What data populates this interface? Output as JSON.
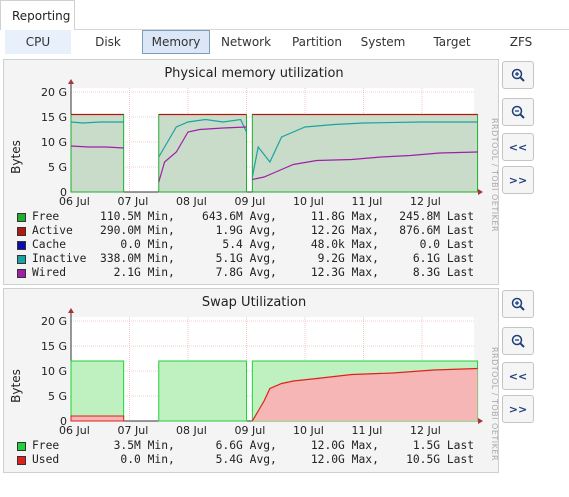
{
  "top_tab": "Reporting",
  "subtabs": [
    "CPU",
    "Disk",
    "Memory",
    "Network",
    "Partition",
    "System",
    "Target",
    "ZFS"
  ],
  "active_subtab": "Memory",
  "side_buttons": {
    "zoom_in": "zoom-in",
    "zoom_out": "zoom-out",
    "prev": "<<",
    "next": ">>"
  },
  "watermark": "RRDTOOL / TOBI OETIKER",
  "memory_chart": {
    "title": "Physical memory utilization",
    "ylabel": "Bytes",
    "y_ticks": [
      "0",
      "5 G",
      "10 G",
      "15 G",
      "20 G"
    ],
    "x_ticks": [
      "06 Jul",
      "07 Jul",
      "08 Jul",
      "09 Jul",
      "10 Jul",
      "11 Jul",
      "12 Jul"
    ],
    "legend": [
      {
        "name": "Free",
        "color": "#1fae2e",
        "min": "110.5M",
        "avg": "643.6M",
        "max": "11.8G",
        "last": "245.8M"
      },
      {
        "name": "Active",
        "color": "#b01a10",
        "min": "290.0M",
        "avg": "1.9G",
        "max": "12.2G",
        "last": "876.6M"
      },
      {
        "name": "Cache",
        "color": "#0b0bb0",
        "min": "0.0",
        "avg": "5.4",
        "max": "48.0k",
        "last": "0.0"
      },
      {
        "name": "Inactive",
        "color": "#1aa3a3",
        "min": "338.0M",
        "avg": "5.1G",
        "max": "9.2G",
        "last": "6.1G"
      },
      {
        "name": "Wired",
        "color": "#a01fa8",
        "min": "2.1G",
        "avg": "7.8G",
        "max": "12.3G",
        "last": "8.3G"
      }
    ]
  },
  "swap_chart": {
    "title": "Swap Utilization",
    "ylabel": "Bytes",
    "y_ticks": [
      "0",
      "5 G",
      "10 G",
      "15 G",
      "20 G"
    ],
    "x_ticks": [
      "06 Jul",
      "07 Jul",
      "08 Jul",
      "09 Jul",
      "10 Jul",
      "11 Jul",
      "12 Jul"
    ],
    "legend": [
      {
        "name": "Free",
        "color": "#1fd13a",
        "min": "3.5M",
        "avg": "6.6G",
        "max": "12.0G",
        "last": "1.5G"
      },
      {
        "name": "Used",
        "color": "#e0201c",
        "min": "0.0",
        "avg": "5.4G",
        "max": "12.0G",
        "last": "10.5G"
      }
    ]
  },
  "chart_data": [
    {
      "type": "area",
      "title": "Physical memory utilization",
      "ylabel": "Bytes",
      "ylim": [
        0,
        20
      ],
      "y_unit": "G",
      "x": [
        "06 Jul",
        "07 Jul",
        "08 Jul",
        "09 Jul",
        "10 Jul",
        "11 Jul",
        "12 Jul"
      ],
      "series": [
        {
          "name": "Wired",
          "values": [
            9,
            0,
            14,
            3,
            6.5,
            7,
            8
          ]
        },
        {
          "name": "Inactive",
          "values": [
            14,
            0,
            14.5,
            12,
            13.5,
            14,
            14
          ]
        },
        {
          "name": "Active",
          "values": [
            15.5,
            0,
            15.5,
            15,
            15.5,
            15.5,
            15.5
          ]
        },
        {
          "name": "Free",
          "values": [
            15.5,
            0,
            15.5,
            15.5,
            15.5,
            15.5,
            15.5
          ]
        }
      ],
      "grid": true
    },
    {
      "type": "area",
      "title": "Swap Utilization",
      "ylabel": "Bytes",
      "ylim": [
        0,
        20
      ],
      "y_unit": "G",
      "x": [
        "06 Jul",
        "07 Jul",
        "08 Jul",
        "09 Jul",
        "10 Jul",
        "11 Jul",
        "12 Jul"
      ],
      "series": [
        {
          "name": "Used",
          "values": [
            1,
            0,
            0,
            0,
            7,
            9.5,
            10.5
          ]
        },
        {
          "name": "Free",
          "values": [
            12,
            0,
            12,
            12,
            12,
            12,
            12
          ]
        }
      ],
      "grid": true
    }
  ]
}
